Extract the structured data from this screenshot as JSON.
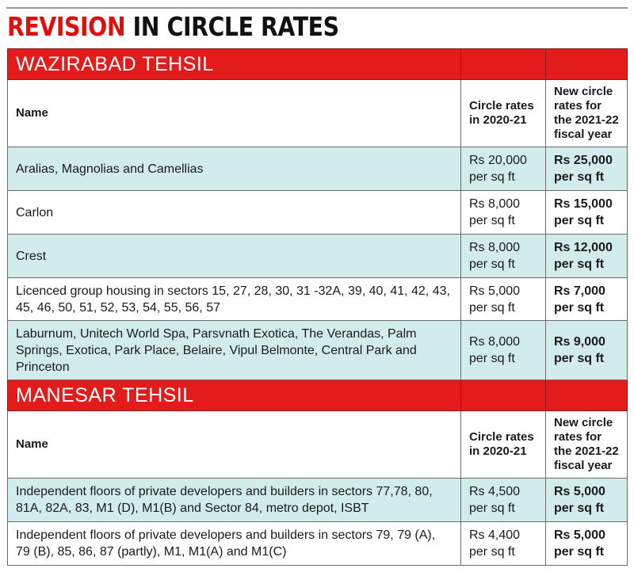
{
  "title": {
    "red_part": "REVISION",
    "black_part": "IN CIRCLE RATES"
  },
  "sections": [
    {
      "name": "WAZIRABAD TEHSIL",
      "headers": {
        "name": "Name",
        "old": "Circle rates in 2020-21",
        "new": "New circle rates for the 2021-22 fiscal year"
      },
      "rows": [
        {
          "name": "Aralias, Magnolias and Camellias",
          "old": "Rs 20,000 per sq ft",
          "new": "Rs 25,000 per sq ft"
        },
        {
          "name": "Carlon",
          "old": "Rs 8,000 per sq ft",
          "new": "Rs 15,000 per sq ft"
        },
        {
          "name": "Crest",
          "old": "Rs 8,000 per sq ft",
          "new": "Rs 12,000 per sq ft"
        },
        {
          "name": "Licenced group housing in sectors 15, 27, 28, 30, 31 -32A, 39, 40, 41, 42, 43, 45, 46, 50, 51, 52, 53, 54, 55, 56, 57",
          "old": "Rs 5,000 per sq ft",
          "new": "Rs 7,000 per sq ft"
        },
        {
          "name": "Laburnum, Unitech World Spa, Parsvnath Exotica, The Verandas, Palm Springs, Exotica, Park Place, Belaire, Vipul Belmonte, Central Park and Princeton",
          "old": "Rs 8,000 per sq ft",
          "new": "Rs 9,000 per sq ft"
        }
      ]
    },
    {
      "name": "MANESAR TEHSIL",
      "headers": {
        "name": "Name",
        "old": "Circle rates in 2020-21",
        "new": "New circle rates for the 2021-22 fiscal year"
      },
      "rows": [
        {
          "name": "Independent floors of private developers and builders in sectors 77,78, 80, 81A, 82A, 83, M1 (D), M1(B) and Sector 84, metro depot, ISBT",
          "old": "Rs 4,500 per sq ft",
          "new": "Rs 5,000 per sq ft"
        },
        {
          "name": "Independent floors of private developers and builders in sectors 79, 79 (A), 79 (B), 85, 86, 87 (partly), M1, M1(A) and M1(C)",
          "old": "Rs 4,400 per sq ft",
          "new": "Rs 5,000 per sq ft"
        }
      ]
    }
  ]
}
